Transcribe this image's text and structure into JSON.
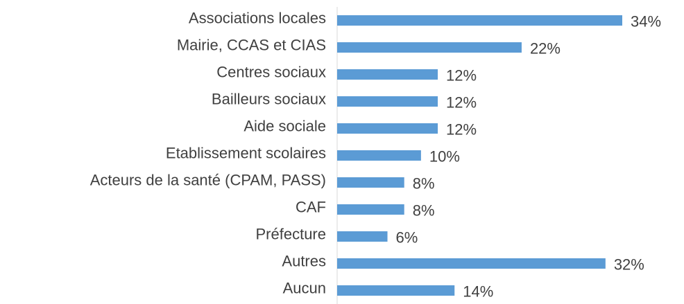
{
  "chart_data": {
    "type": "hbar",
    "categories": [
      "Associations locales",
      "Mairie, CCAS et CIAS",
      "Centres sociaux",
      "Bailleurs sociaux",
      "Aide sociale",
      "Etablissement scolaires",
      "Acteurs de la santé (CPAM, PASS)",
      "CAF",
      "Préfecture",
      "Autres",
      "Aucun"
    ],
    "values": [
      34,
      22,
      12,
      12,
      12,
      10,
      8,
      8,
      6,
      32,
      14
    ],
    "value_labels": [
      "34%",
      "22%",
      "12%",
      "12%",
      "12%",
      "10%",
      "8%",
      "8%",
      "6%",
      "32%",
      "14%"
    ],
    "color": "#5b9bd5"
  }
}
